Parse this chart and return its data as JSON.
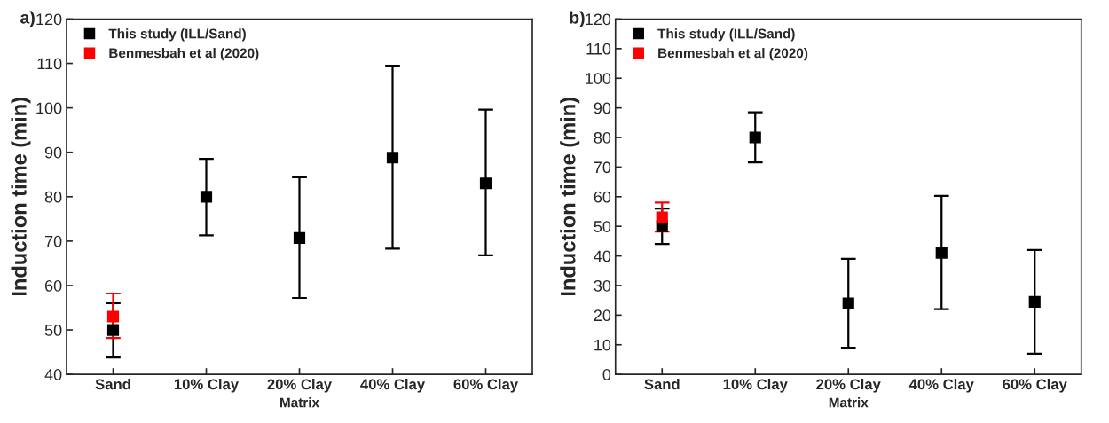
{
  "chart_data": [
    {
      "type": "scatter",
      "title": "a)",
      "xlabel": "Matrix",
      "ylabel": "Induction time (min)",
      "categories": [
        "Sand",
        "10% Clay",
        "20% Clay",
        "40% Clay",
        "60% Clay"
      ],
      "ylim": [
        40,
        120
      ],
      "yticks": [
        40,
        50,
        60,
        70,
        80,
        90,
        100,
        110,
        120
      ],
      "marker": "square",
      "legend": "top left",
      "grid": false,
      "series": [
        {
          "name": "This study (ILL/Sand)",
          "color": "#000000",
          "values": [
            50,
            80,
            70.7,
            88.8,
            83
          ],
          "errors": [
            [
              43.8,
              56
            ],
            [
              71.3,
              88.5
            ],
            [
              57.2,
              84.4
            ],
            [
              68.3,
              109.5
            ],
            [
              66.8,
              99.6
            ]
          ]
        },
        {
          "name": "Benmesbah et al (2020)",
          "color": "#ff0000",
          "values": [
            53,
            null,
            null,
            null,
            null
          ],
          "errors": [
            [
              48.2,
              58.2
            ],
            null,
            null,
            null,
            null
          ]
        }
      ]
    },
    {
      "type": "scatter",
      "title": "b)",
      "xlabel": "Matrix",
      "ylabel": "Induction time (min)",
      "categories": [
        "Sand",
        "10% Clay",
        "20% Clay",
        "40% Clay",
        "60% Clay"
      ],
      "ylim": [
        0,
        120
      ],
      "yticks": [
        0,
        10,
        20,
        30,
        40,
        50,
        60,
        70,
        80,
        90,
        100,
        110,
        120
      ],
      "marker": "square",
      "legend": "top left",
      "grid": false,
      "series": [
        {
          "name": "This study (ILL/Sand)",
          "color": "#000000",
          "values": [
            50,
            80,
            24,
            41,
            24.5
          ],
          "errors": [
            [
              44,
              56
            ],
            [
              71.6,
              88.5
            ],
            [
              9,
              39
            ],
            [
              22,
              60.3
            ],
            [
              7,
              42
            ]
          ]
        },
        {
          "name": "Benmesbah et al (2020)",
          "color": "#ff0000",
          "values": [
            53,
            null,
            null,
            null,
            null
          ],
          "errors": [
            [
              48.2,
              58
            ],
            null,
            null,
            null,
            null
          ]
        }
      ]
    }
  ]
}
